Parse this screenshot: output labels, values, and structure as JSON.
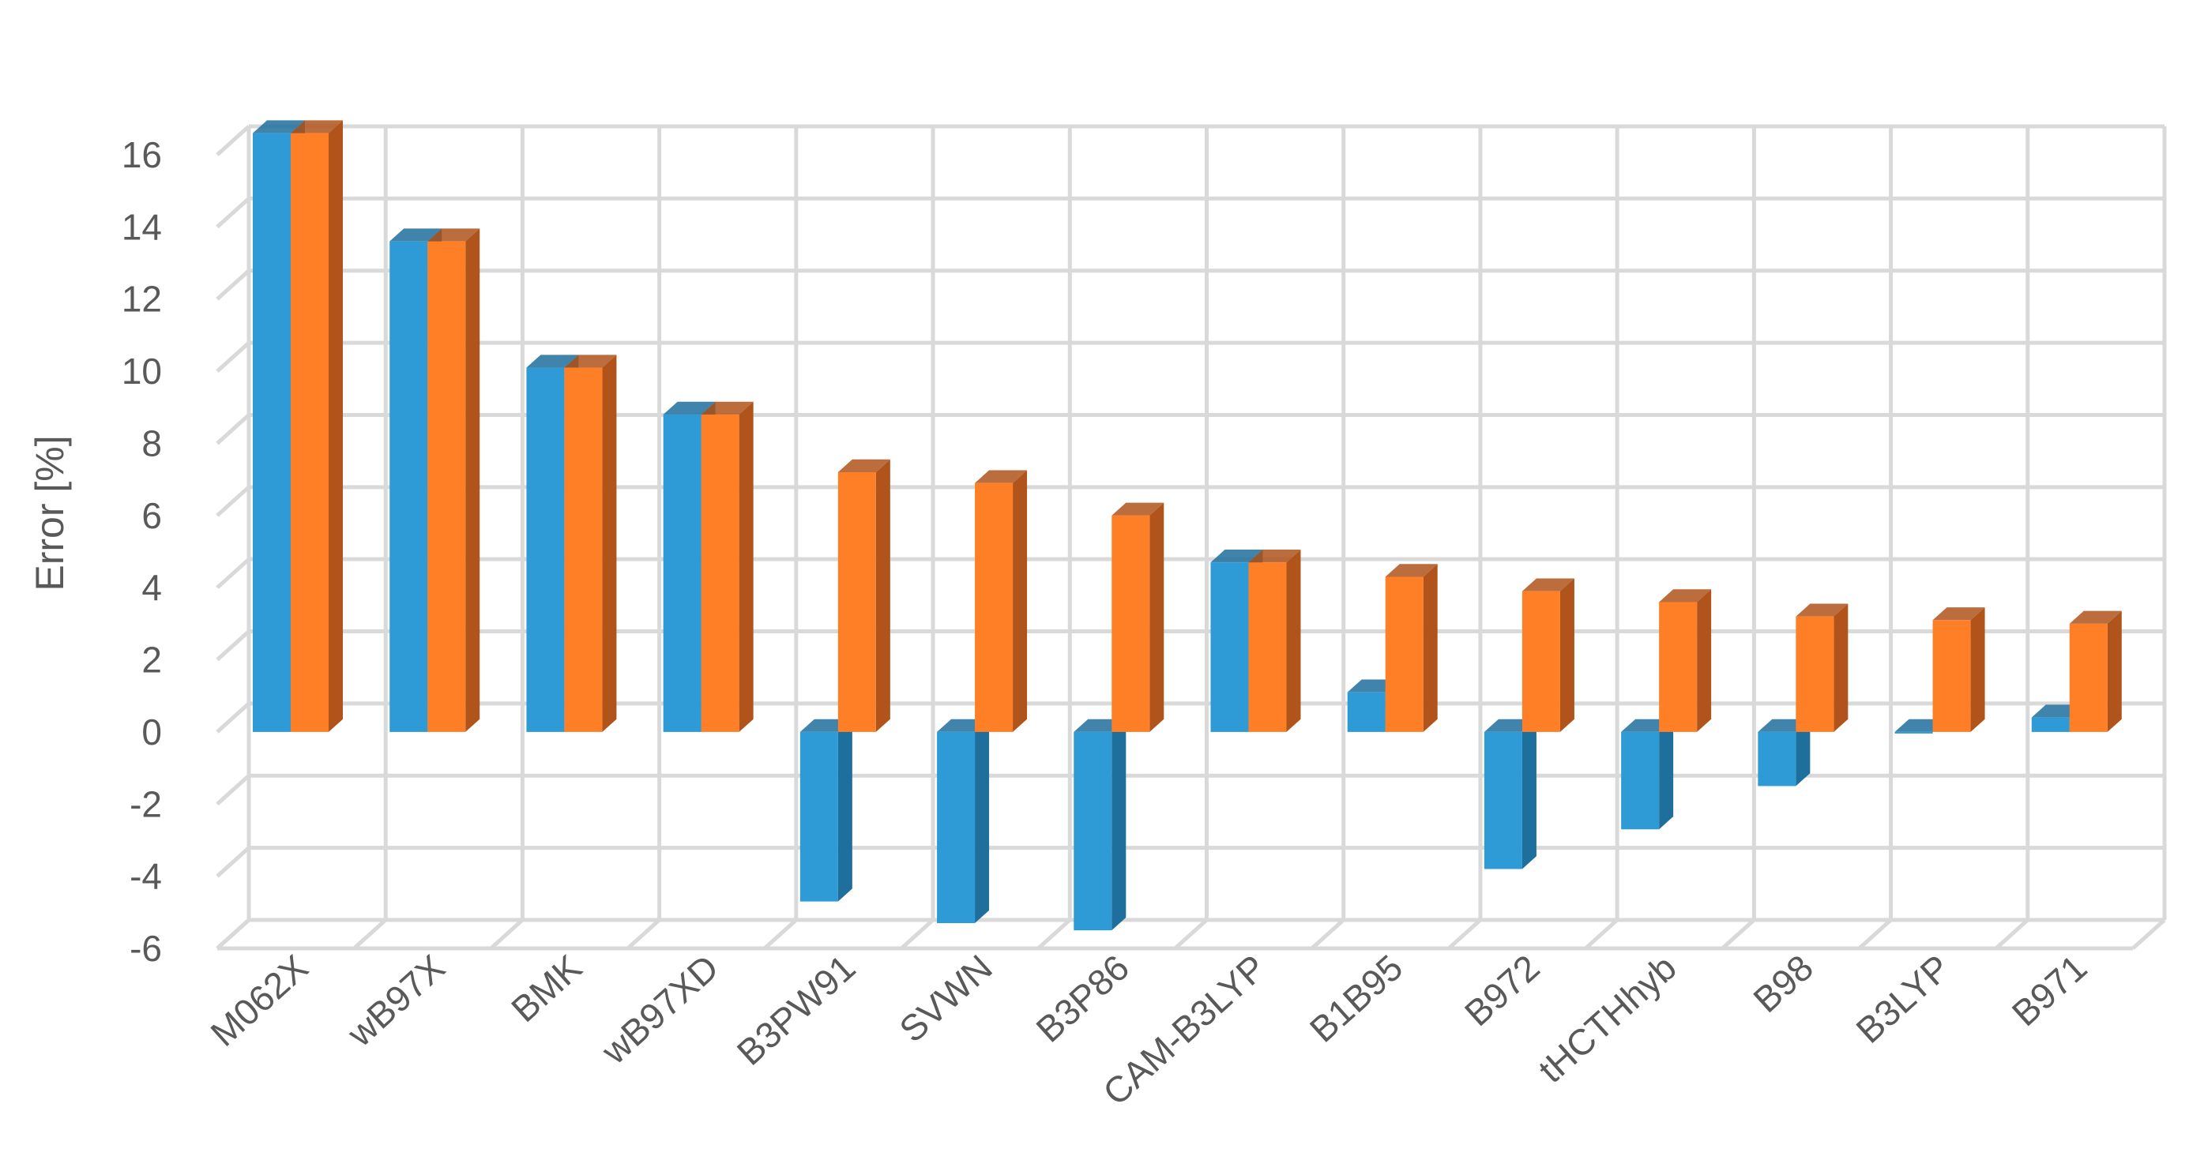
{
  "chart_data": {
    "type": "bar",
    "style": "3d-clustered-column",
    "title": "",
    "xlabel": "",
    "ylabel": "Error [%]",
    "ylim": [
      -6,
      16
    ],
    "yticks": [
      -6,
      -4,
      -2,
      0,
      2,
      4,
      6,
      8,
      10,
      12,
      14,
      16
    ],
    "grid": true,
    "legend": "none",
    "categories": [
      "M062X",
      "wB97X",
      "BMK",
      "wB97XD",
      "B3PW91",
      "SVWN",
      "B3P86",
      "CAM-B3LYP",
      "B1B95",
      "B972",
      "tHCTHhyb",
      "B98",
      "B3LYP",
      "B971"
    ],
    "series": [
      {
        "color": "#2E9BD6",
        "side": "#1E6F9C",
        "values": [
          16.6,
          13.6,
          10.1,
          8.8,
          -4.7,
          -5.3,
          -5.5,
          4.7,
          1.1,
          -3.8,
          -2.7,
          -1.5,
          0.0,
          0.4
        ]
      },
      {
        "color": "#FF7F27",
        "side": "#B0541B",
        "values": [
          16.6,
          13.6,
          10.1,
          8.8,
          7.2,
          6.9,
          6.0,
          4.7,
          4.3,
          3.9,
          3.6,
          3.2,
          3.1,
          3.0
        ]
      }
    ]
  }
}
